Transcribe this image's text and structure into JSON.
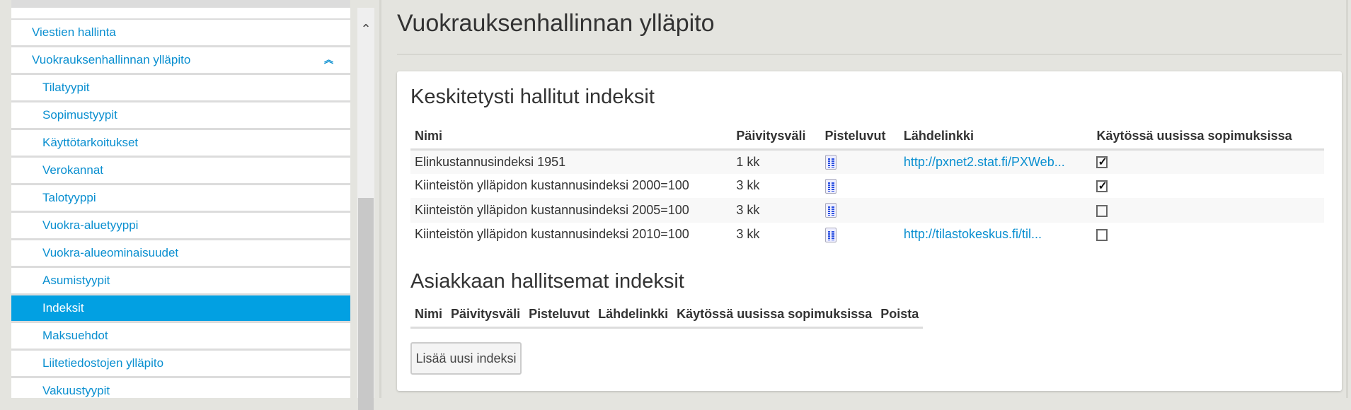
{
  "sidebar": {
    "parent_items": [
      {
        "label": "Viestien hallinta"
      },
      {
        "label": "Vuokrauksenhallinnan ylläpito",
        "icon": "double-chevron-up-icon"
      }
    ],
    "sub_items": [
      {
        "label": "Tilatyypit"
      },
      {
        "label": "Sopimustyypit"
      },
      {
        "label": "Käyttötarkoitukset"
      },
      {
        "label": "Verokannat"
      },
      {
        "label": "Talotyyppi"
      },
      {
        "label": "Vuokra-aluetyyppi"
      },
      {
        "label": "Vuokra-alueominaisuudet"
      },
      {
        "label": "Asumistyypit"
      },
      {
        "label": "Indeksit",
        "active": true
      },
      {
        "label": "Maksuehdot"
      },
      {
        "label": "Liitetiedostojen ylläpito"
      },
      {
        "label": "Vakuustyypit"
      }
    ]
  },
  "main": {
    "title": "Vuokrauksenhallinnan ylläpito",
    "central": {
      "heading": "Keskitetysti hallitut indeksit",
      "columns": [
        "Nimi",
        "Päivitysväli",
        "Pisteluvut",
        "Lähdelinkki",
        "Käytössä uusissa sopimuksissa"
      ],
      "rows": [
        {
          "name": "Elinkustannusindeksi 1951",
          "interval": "1 kk",
          "link": "http://pxnet2.stat.fi/PXWeb...",
          "in_use": true
        },
        {
          "name": "Kiinteistön ylläpidon kustannusindeksi 2000=100",
          "interval": "3 kk",
          "link": "",
          "in_use": true
        },
        {
          "name": "Kiinteistön ylläpidon kustannusindeksi 2005=100",
          "interval": "3 kk",
          "link": "",
          "in_use": false
        },
        {
          "name": "Kiinteistön ylläpidon kustannusindeksi 2010=100",
          "interval": "3 kk",
          "link": "http://tilastokeskus.fi/til...",
          "in_use": false
        }
      ]
    },
    "customer": {
      "heading": "Asiakkaan hallitsemat indeksit",
      "columns": [
        "Nimi",
        "Päivitysväli",
        "Pisteluvut",
        "Lähdelinkki",
        "Käytössä uusissa sopimuksissa",
        "Poista"
      ]
    },
    "add_button": "Lisää uusi indeksi"
  },
  "colors": {
    "accent": "#02a0e2",
    "link": "#0a8fd0",
    "background": "#e4e4df"
  }
}
